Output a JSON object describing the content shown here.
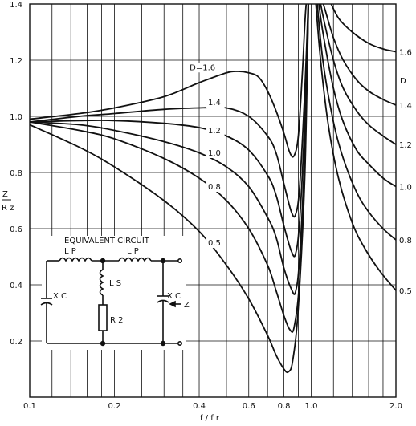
{
  "chart_data": {
    "type": "line",
    "xscale": "log",
    "xlim": [
      0.1,
      2.0
    ],
    "ylim": [
      0,
      1.4
    ],
    "grid": true,
    "xlabel": "f / f r",
    "ylabel_num": "Z",
    "ylabel_den": "R z",
    "xticks": [
      {
        "v": 0.1,
        "label": "0.1"
      },
      {
        "v": 0.2,
        "label": "0.2"
      },
      {
        "v": 0.4,
        "label": "0.4"
      },
      {
        "v": 0.6,
        "label": "0.6"
      },
      {
        "v": 0.8,
        "label": "0.8"
      },
      {
        "v": 1.0,
        "label": "1.0"
      },
      {
        "v": 2.0,
        "label": "2.0"
      }
    ],
    "xgrid": [
      0.1,
      0.12,
      0.14,
      0.16,
      0.18,
      0.2,
      0.25,
      0.3,
      0.35,
      0.4,
      0.5,
      0.6,
      0.7,
      0.8,
      0.9,
      1.0,
      1.2,
      1.4,
      1.6,
      1.8,
      2.0
    ],
    "yticks": [
      {
        "v": 0.2,
        "label": "0.2"
      },
      {
        "v": 0.4,
        "label": "0.4"
      },
      {
        "v": 0.6,
        "label": "0.6"
      },
      {
        "v": 0.8,
        "label": "0.8"
      },
      {
        "v": 1.0,
        "label": "1.0"
      },
      {
        "v": 1.2,
        "label": "1.2"
      },
      {
        "v": 1.4,
        "label": "1.4"
      }
    ],
    "series": [
      {
        "name": "1.6",
        "label": "D=1.6",
        "x": [
          0.1,
          0.15,
          0.2,
          0.3,
          0.4,
          0.5,
          0.55,
          0.6,
          0.65,
          0.7,
          0.75,
          0.8,
          0.84,
          0.87,
          0.9,
          0.93,
          0.96,
          1.0
        ],
        "y": [
          0.99,
          1.01,
          1.03,
          1.07,
          1.12,
          1.155,
          1.16,
          1.155,
          1.14,
          1.09,
          1.02,
          0.94,
          0.87,
          0.86,
          0.93,
          1.15,
          1.4,
          1.45
        ]
      },
      {
        "name": "1.4",
        "label": "1.4",
        "x": [
          0.1,
          0.15,
          0.2,
          0.3,
          0.4,
          0.5,
          0.6,
          0.7,
          0.75,
          0.8,
          0.85,
          0.88,
          0.91,
          0.95,
          0.98
        ],
        "y": [
          0.98,
          1.0,
          1.01,
          1.025,
          1.03,
          1.03,
          1.0,
          0.93,
          0.87,
          0.76,
          0.66,
          0.65,
          0.75,
          1.1,
          1.45
        ]
      },
      {
        "name": "1.2",
        "label": "1.2",
        "x": [
          0.1,
          0.15,
          0.2,
          0.3,
          0.4,
          0.5,
          0.6,
          0.7,
          0.75,
          0.8,
          0.85,
          0.88,
          0.91,
          0.95,
          0.98
        ],
        "y": [
          0.98,
          0.985,
          0.985,
          0.975,
          0.96,
          0.93,
          0.88,
          0.79,
          0.72,
          0.61,
          0.52,
          0.51,
          0.63,
          1.0,
          1.45
        ]
      },
      {
        "name": "1.0",
        "label": "1.0",
        "x": [
          0.1,
          0.15,
          0.2,
          0.3,
          0.4,
          0.5,
          0.6,
          0.7,
          0.75,
          0.8,
          0.85,
          0.88,
          0.91,
          0.95,
          0.98
        ],
        "y": [
          0.98,
          0.97,
          0.95,
          0.91,
          0.87,
          0.82,
          0.75,
          0.64,
          0.57,
          0.46,
          0.385,
          0.375,
          0.5,
          0.9,
          1.45
        ]
      },
      {
        "name": "0.8",
        "label": "0.8",
        "x": [
          0.1,
          0.15,
          0.2,
          0.3,
          0.4,
          0.5,
          0.6,
          0.7,
          0.75,
          0.8,
          0.84,
          0.87,
          0.91,
          0.95,
          0.98
        ],
        "y": [
          0.98,
          0.95,
          0.92,
          0.85,
          0.78,
          0.7,
          0.6,
          0.47,
          0.38,
          0.29,
          0.24,
          0.25,
          0.42,
          0.85,
          1.45
        ]
      },
      {
        "name": "0.5",
        "label": "0.5",
        "x": [
          0.1,
          0.15,
          0.2,
          0.3,
          0.4,
          0.5,
          0.6,
          0.7,
          0.75,
          0.8,
          0.83,
          0.86,
          0.9,
          0.95,
          0.98
        ],
        "y": [
          0.97,
          0.89,
          0.82,
          0.7,
          0.59,
          0.47,
          0.35,
          0.22,
          0.15,
          0.1,
          0.09,
          0.13,
          0.32,
          0.8,
          1.45
        ]
      },
      {
        "name": "1.6 right",
        "label": "1.6",
        "x": [
          1.08,
          1.15,
          1.25,
          1.4,
          1.6,
          1.8,
          2.0
        ],
        "y": [
          1.45,
          1.42,
          1.35,
          1.3,
          1.26,
          1.24,
          1.23
        ]
      },
      {
        "name": "1.4 right",
        "label": "1.4",
        "x": [
          1.07,
          1.12,
          1.2,
          1.3,
          1.45,
          1.6,
          1.8,
          2.0
        ],
        "y": [
          1.45,
          1.38,
          1.28,
          1.2,
          1.13,
          1.09,
          1.06,
          1.04
        ]
      },
      {
        "name": "1.2 right",
        "label": "1.2",
        "x": [
          1.06,
          1.1,
          1.2,
          1.3,
          1.45,
          1.6,
          1.8,
          2.0
        ],
        "y": [
          1.45,
          1.36,
          1.2,
          1.1,
          1.02,
          0.97,
          0.93,
          0.9
        ]
      },
      {
        "name": "1.0 right",
        "label": "1.0",
        "x": [
          1.05,
          1.1,
          1.2,
          1.3,
          1.45,
          1.6,
          1.8,
          2.0
        ],
        "y": [
          1.45,
          1.3,
          1.1,
          0.98,
          0.88,
          0.83,
          0.78,
          0.75
        ]
      },
      {
        "name": "0.8 right",
        "label": "0.8",
        "x": [
          1.04,
          1.1,
          1.2,
          1.3,
          1.45,
          1.6,
          1.8,
          2.0
        ],
        "y": [
          1.45,
          1.2,
          0.98,
          0.85,
          0.73,
          0.66,
          0.6,
          0.56
        ]
      },
      {
        "name": "0.5 right",
        "label": "0.5",
        "x": [
          1.03,
          1.08,
          1.15,
          1.25,
          1.4,
          1.55,
          1.75,
          2.0
        ],
        "y": [
          1.45,
          1.2,
          0.97,
          0.78,
          0.62,
          0.53,
          0.45,
          0.38
        ]
      }
    ],
    "right_label_header": "D",
    "annotations": {
      "circuit_title": "EQUIVALENT CIRCUIT",
      "lp_left": "L P",
      "lp_right": "L P",
      "ls": "L S",
      "xc_left": "X C",
      "xc_right": "X C",
      "r2": "R 2",
      "z": "Z"
    }
  }
}
